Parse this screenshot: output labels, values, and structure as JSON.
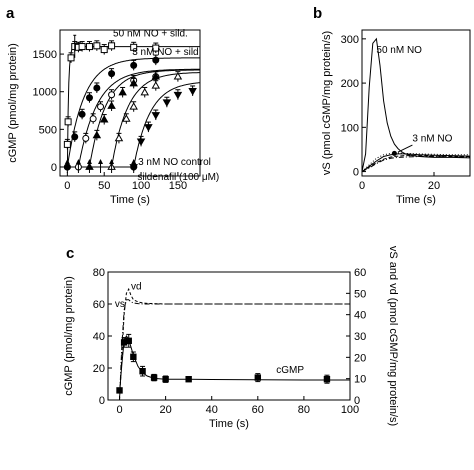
{
  "chart_data": [
    {
      "id": "a",
      "type": "scatter",
      "panel_label": "a",
      "xlabel": "Time (s)",
      "ylabel": "cGMP (pmol/mg protein)",
      "xlim": [
        -10,
        180
      ],
      "ylim": [
        -120,
        1820
      ],
      "xticks": [
        0,
        50,
        100,
        150
      ],
      "yticks": [
        0,
        500,
        1000,
        1500
      ],
      "grid": false,
      "annotations": [
        {
          "text": "50 nM NO + sild.",
          "x": 62,
          "y": 1735
        },
        {
          "text": "3 nM NO + sild.",
          "x": 88,
          "y": 1490
        },
        {
          "text": "3 nM NO control",
          "x": 96,
          "y": 28
        },
        {
          "text": "sildenafil (100 μM)",
          "x": 95,
          "y": -170
        }
      ],
      "arrows_x": [
        0,
        15,
        30,
        45,
        60,
        90
      ],
      "series": [
        {
          "marker": "square-open",
          "start": 0,
          "plateau": 1600,
          "k": 0.6,
          "points": [
            [
              0,
              300
            ],
            [
              1,
              600
            ],
            [
              5,
              1450
            ],
            [
              10,
              1600
            ],
            [
              15,
              1590
            ],
            [
              20,
              1600
            ],
            [
              30,
              1600
            ],
            [
              40,
              1610
            ],
            [
              50,
              1560
            ],
            [
              60,
              1610
            ],
            [
              90,
              1590
            ],
            [
              120,
              1580
            ]
          ]
        },
        {
          "marker": "circle-filled",
          "start": 0,
          "plateau": 1450,
          "k": 0.045,
          "points": [
            [
              0,
              0
            ],
            [
              10,
              400
            ],
            [
              20,
              700
            ],
            [
              30,
              920
            ],
            [
              40,
              1050
            ],
            [
              60,
              1240
            ],
            [
              90,
              1350
            ],
            [
              120,
              1420
            ]
          ]
        },
        {
          "marker": "circle-open",
          "start": 15,
          "plateau": 1300,
          "k": 0.04,
          "points": [
            [
              15,
              0
            ],
            [
              25,
              380
            ],
            [
              35,
              640
            ],
            [
              45,
              800
            ],
            [
              60,
              960
            ],
            [
              90,
              1150
            ],
            [
              120,
              1200
            ]
          ]
        },
        {
          "marker": "triangle-up-filled",
          "start": 30,
          "plateau": 1290,
          "k": 0.045,
          "points": [
            [
              30,
              0
            ],
            [
              40,
              420
            ],
            [
              50,
              630
            ],
            [
              60,
              810
            ],
            [
              75,
              990
            ],
            [
              90,
              1110
            ],
            [
              120,
              1200
            ]
          ]
        },
        {
          "marker": "triangle-up-open",
          "start": 60,
          "plateau": 1260,
          "k": 0.045,
          "points": [
            [
              60,
              0
            ],
            [
              70,
              380
            ],
            [
              80,
              640
            ],
            [
              90,
              800
            ],
            [
              105,
              990
            ],
            [
              120,
              1080
            ],
            [
              150,
              1200
            ]
          ]
        },
        {
          "marker": "triangle-down-filled",
          "start": 90,
          "plateau": 1140,
          "k": 0.045,
          "points": [
            [
              90,
              0
            ],
            [
              100,
              340
            ],
            [
              110,
              530
            ],
            [
              120,
              690
            ],
            [
              135,
              860
            ],
            [
              150,
              960
            ],
            [
              170,
              1010
            ]
          ]
        },
        {
          "marker": "circle-filled",
          "control": true,
          "points": [
            [
              0,
              0
            ],
            [
              90,
              0
            ]
          ]
        }
      ]
    },
    {
      "id": "b",
      "type": "line",
      "panel_label": "b",
      "xlabel": "Time (s)",
      "ylabel": "vS (pmol cGMP/mg protein/s)",
      "xlim": [
        0,
        30
      ],
      "ylim": [
        -10,
        320
      ],
      "xticks": [
        0,
        20
      ],
      "yticks": [
        0,
        100,
        200,
        300
      ],
      "grid": false,
      "annotations": [
        {
          "text": "50 nM NO",
          "x": 4,
          "y": 268
        },
        {
          "text": "3 nM NO",
          "x": 14,
          "y": 68
        }
      ],
      "series": [
        {
          "label": "50 nM NO",
          "style": "solid",
          "x": [
            0,
            1,
            2,
            3,
            4,
            5,
            6,
            7,
            8,
            9,
            10,
            11,
            12,
            14,
            16,
            18,
            20,
            25,
            30
          ],
          "y": [
            0,
            40,
            190,
            290,
            300,
            240,
            160,
            110,
            80,
            62,
            52,
            45,
            40,
            36,
            34,
            33,
            32,
            32,
            31
          ]
        },
        {
          "label": "3 nM NO",
          "style": "solid",
          "x": [
            0,
            2,
            4,
            6,
            8,
            10,
            12,
            16,
            20,
            25,
            30
          ],
          "y": [
            0,
            12,
            24,
            34,
            38,
            40,
            40,
            38,
            37,
            36,
            35
          ]
        },
        {
          "style": "dashed",
          "x": [
            0,
            2,
            4,
            6,
            8,
            10,
            12,
            16,
            20,
            25,
            30
          ],
          "y": [
            0,
            10,
            20,
            28,
            33,
            35,
            36,
            36,
            35,
            34,
            34
          ]
        },
        {
          "style": "dotted",
          "x": [
            0,
            2,
            4,
            6,
            8,
            10,
            12,
            16,
            20,
            25,
            30
          ],
          "y": [
            0,
            15,
            30,
            38,
            41,
            42,
            41,
            40,
            39,
            38,
            38
          ]
        },
        {
          "style": "dashdot",
          "x": [
            0,
            2,
            4,
            6,
            8,
            10,
            12,
            16,
            20,
            25,
            30
          ],
          "y": [
            0,
            8,
            18,
            26,
            30,
            32,
            33,
            34,
            34,
            33,
            33
          ]
        }
      ]
    },
    {
      "id": "c",
      "type": "scatter",
      "panel_label": "c",
      "xlabel": "Time (s)",
      "ylabel": "cGMP (pmol/mg protein)",
      "y2label": "vS and vd (pmol cGMP/mg protein/s)",
      "xlim": [
        -5,
        100
      ],
      "ylim": [
        0,
        80
      ],
      "y2lim": [
        0,
        60
      ],
      "xticks": [
        0,
        20,
        40,
        60,
        80,
        100
      ],
      "yticks": [
        0,
        20,
        40,
        60,
        80
      ],
      "y2ticks": [
        0,
        10,
        20,
        30,
        40,
        50,
        60
      ],
      "grid": false,
      "annotations": [
        {
          "text": "vd",
          "x": 5,
          "y": 69
        },
        {
          "text": "vs",
          "x": -2,
          "y": 58
        },
        {
          "text": "cGMP",
          "x": 68,
          "y": 17
        }
      ],
      "points": [
        [
          0,
          6,
          1.5
        ],
        [
          2,
          36,
          3
        ],
        [
          4,
          37,
          4
        ],
        [
          6,
          27,
          3
        ],
        [
          10,
          18,
          3
        ],
        [
          15,
          14,
          2
        ],
        [
          20,
          13,
          2
        ],
        [
          30,
          13,
          1.5
        ],
        [
          60,
          14,
          2.5
        ],
        [
          90,
          13,
          2.5
        ]
      ],
      "fit": {
        "x": [
          0,
          1,
          2,
          3,
          4,
          5,
          6,
          8,
          10,
          12,
          15,
          20,
          30,
          40,
          60,
          80,
          100
        ],
        "y": [
          4,
          22,
          37,
          40,
          38,
          33,
          28,
          21,
          17,
          15,
          13.5,
          13,
          13,
          12.8,
          12.6,
          12.5,
          12.5
        ]
      },
      "vd": {
        "x": [
          0,
          1,
          2,
          3,
          4,
          5,
          6,
          8,
          10,
          12,
          15,
          20,
          30,
          40,
          60,
          80,
          100
        ],
        "y": [
          0,
          20,
          40,
          50,
          52,
          49,
          47,
          46,
          45.5,
          45.3,
          45.2,
          45,
          45,
          45,
          45,
          45,
          45
        ]
      },
      "vs": {
        "x": [
          0,
          1,
          2,
          3,
          4,
          5,
          6,
          8,
          10,
          15,
          20,
          30,
          40,
          60,
          80,
          100
        ],
        "y": [
          0,
          25,
          42,
          47,
          47,
          46,
          45.5,
          45.2,
          45,
          45,
          45,
          45,
          45,
          45,
          45,
          45
        ]
      }
    }
  ]
}
